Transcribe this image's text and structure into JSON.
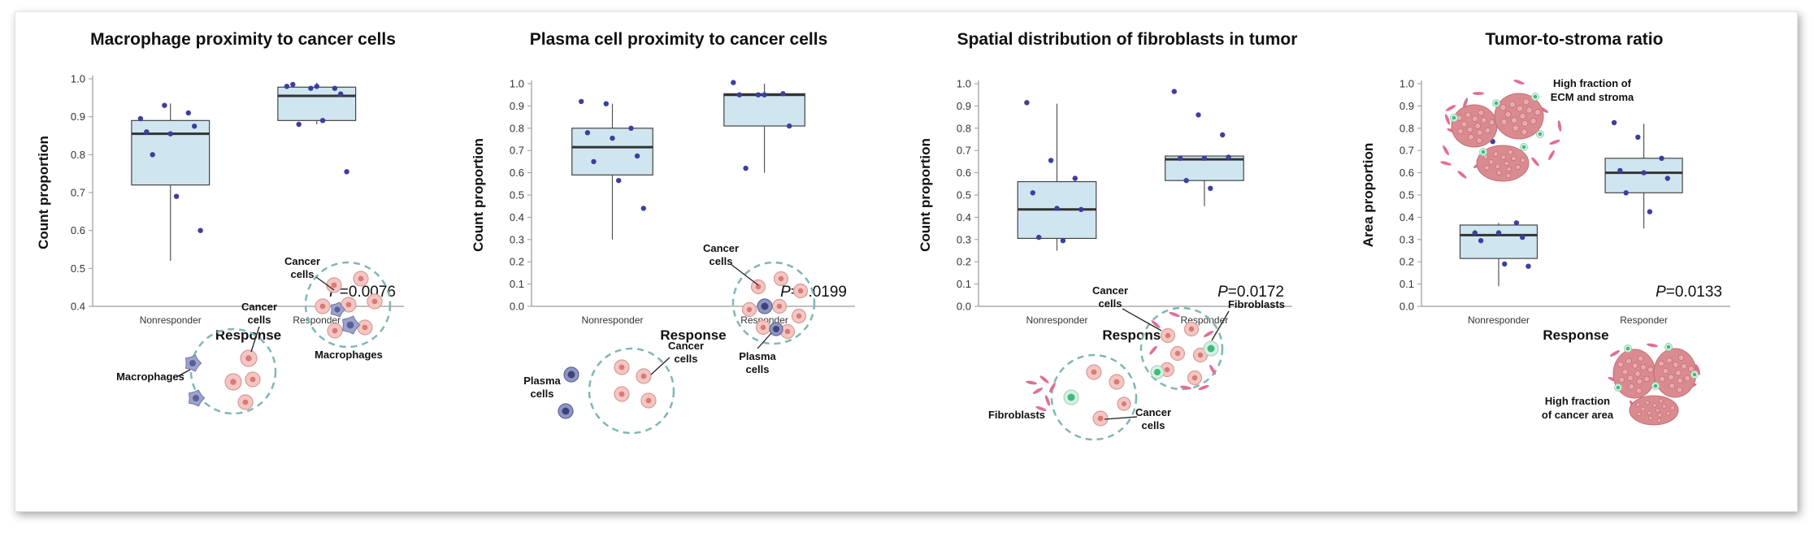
{
  "chart_data": [
    {
      "type": "box",
      "title": "Macrophage proximity to cancer cells",
      "xlabel": "Response",
      "ylabel": "Count proportion",
      "ylim": [
        0.4,
        1.0
      ],
      "yticks": [
        "0.4",
        "0.5",
        "0.6",
        "0.7",
        "0.8",
        "0.9",
        "1.0"
      ],
      "categories": [
        "Nonresponder",
        "Responder"
      ],
      "boxes": [
        {
          "whisker_low": 0.52,
          "q1": 0.72,
          "median": 0.855,
          "q3": 0.89,
          "whisker_high": 0.935
        },
        {
          "whisker_low": 0.88,
          "q1": 0.89,
          "median": 0.955,
          "q3": 0.978,
          "whisker_high": 0.99
        }
      ],
      "points": [
        [
          0.895,
          0.93,
          0.91,
          0.86,
          0.855,
          0.875,
          0.8,
          0.69,
          0.6
        ],
        [
          0.98,
          0.975,
          0.975,
          0.985,
          0.98,
          0.96,
          0.88,
          0.89,
          0.755
        ]
      ],
      "p_prefix": "P",
      "p_value": "=0.0076",
      "annotations": {
        "a": "Cancer",
        "b": "cells",
        "c": "Macrophages",
        "d": "Cancer",
        "e": "cells",
        "f": "Macrophages"
      }
    },
    {
      "type": "box",
      "title": "Plasma cell proximity to cancer cells",
      "xlabel": "Response",
      "ylabel": "Count proportion",
      "ylim": [
        0.0,
        1.0
      ],
      "yticks": [
        "0.0",
        "0.1",
        "0.2",
        "0.3",
        "0.4",
        "0.5",
        "0.6",
        "0.7",
        "0.8",
        "0.9",
        "1.0"
      ],
      "categories": [
        "Nonresponder",
        "Responder"
      ],
      "boxes": [
        {
          "whisker_low": 0.3,
          "q1": 0.59,
          "median": 0.715,
          "q3": 0.8,
          "whisker_high": 0.91
        },
        {
          "whisker_low": 0.6,
          "q1": 0.81,
          "median": 0.95,
          "q3": 0.955,
          "whisker_high": 1.0
        }
      ],
      "points": [
        [
          0.92,
          0.91,
          0.8,
          0.78,
          0.755,
          0.675,
          0.65,
          0.565,
          0.44
        ],
        [
          1.005,
          0.95,
          0.955,
          0.95,
          0.95,
          0.81,
          0.62
        ]
      ],
      "p_prefix": "P",
      "p_value": "=0.0199",
      "annotations": {
        "a": "Cancer",
        "b": "cells",
        "c": "Plasma",
        "d": "cells",
        "e": "Cancer",
        "f": "cells",
        "g": "Plasma",
        "h": "cells"
      }
    },
    {
      "type": "box",
      "title": "Spatial distribution of fibroblasts in tumor",
      "xlabel": "Response",
      "ylabel": "Count proportion",
      "ylim": [
        0.0,
        1.0
      ],
      "yticks": [
        "0.0",
        "0.1",
        "0.2",
        "0.3",
        "0.4",
        "0.5",
        "0.6",
        "0.7",
        "0.8",
        "0.9",
        "1.0"
      ],
      "categories": [
        "Nonresponder",
        "Responder"
      ],
      "boxes": [
        {
          "whisker_low": 0.25,
          "q1": 0.305,
          "median": 0.435,
          "q3": 0.56,
          "whisker_high": 0.91
        },
        {
          "whisker_low": 0.45,
          "q1": 0.565,
          "median": 0.66,
          "q3": 0.675,
          "whisker_high": 0.675
        }
      ],
      "points": [
        [
          0.915,
          0.655,
          0.575,
          0.51,
          0.44,
          0.435,
          0.31,
          0.295
        ],
        [
          0.965,
          0.86,
          0.77,
          0.665,
          0.665,
          0.67,
          0.565,
          0.53
        ]
      ],
      "p_prefix": "P",
      "p_value": "=0.0172",
      "annotations": {
        "a": "Cancer",
        "b": "cells",
        "c": "Fibroblasts",
        "d": "Fibroblasts",
        "e": "Cancer",
        "f": "cells"
      }
    },
    {
      "type": "box",
      "title": "Tumor-to-stroma ratio",
      "xlabel": "Response",
      "ylabel": "Area proportion",
      "ylim": [
        0.0,
        1.0
      ],
      "yticks": [
        "0.0",
        "0.1",
        "0.2",
        "0.3",
        "0.4",
        "0.5",
        "0.6",
        "0.7",
        "0.8",
        "0.9",
        "1.0"
      ],
      "categories": [
        "Nonresponder",
        "Responder"
      ],
      "boxes": [
        {
          "whisker_low": 0.09,
          "q1": 0.215,
          "median": 0.32,
          "q3": 0.365,
          "whisker_high": 0.375
        },
        {
          "whisker_low": 0.35,
          "q1": 0.51,
          "median": 0.6,
          "q3": 0.665,
          "whisker_high": 0.82
        }
      ],
      "points": [
        [
          0.755,
          0.74,
          0.375,
          0.33,
          0.33,
          0.31,
          0.295,
          0.19,
          0.18
        ],
        [
          0.825,
          0.76,
          0.665,
          0.61,
          0.6,
          0.575,
          0.51,
          0.425
        ]
      ],
      "p_prefix": "P",
      "p_value": "=0.0133",
      "annotations": {
        "a": "High fraction of",
        "b": "ECM and stroma",
        "c": "High fraction",
        "d": "of cancer area"
      }
    }
  ]
}
